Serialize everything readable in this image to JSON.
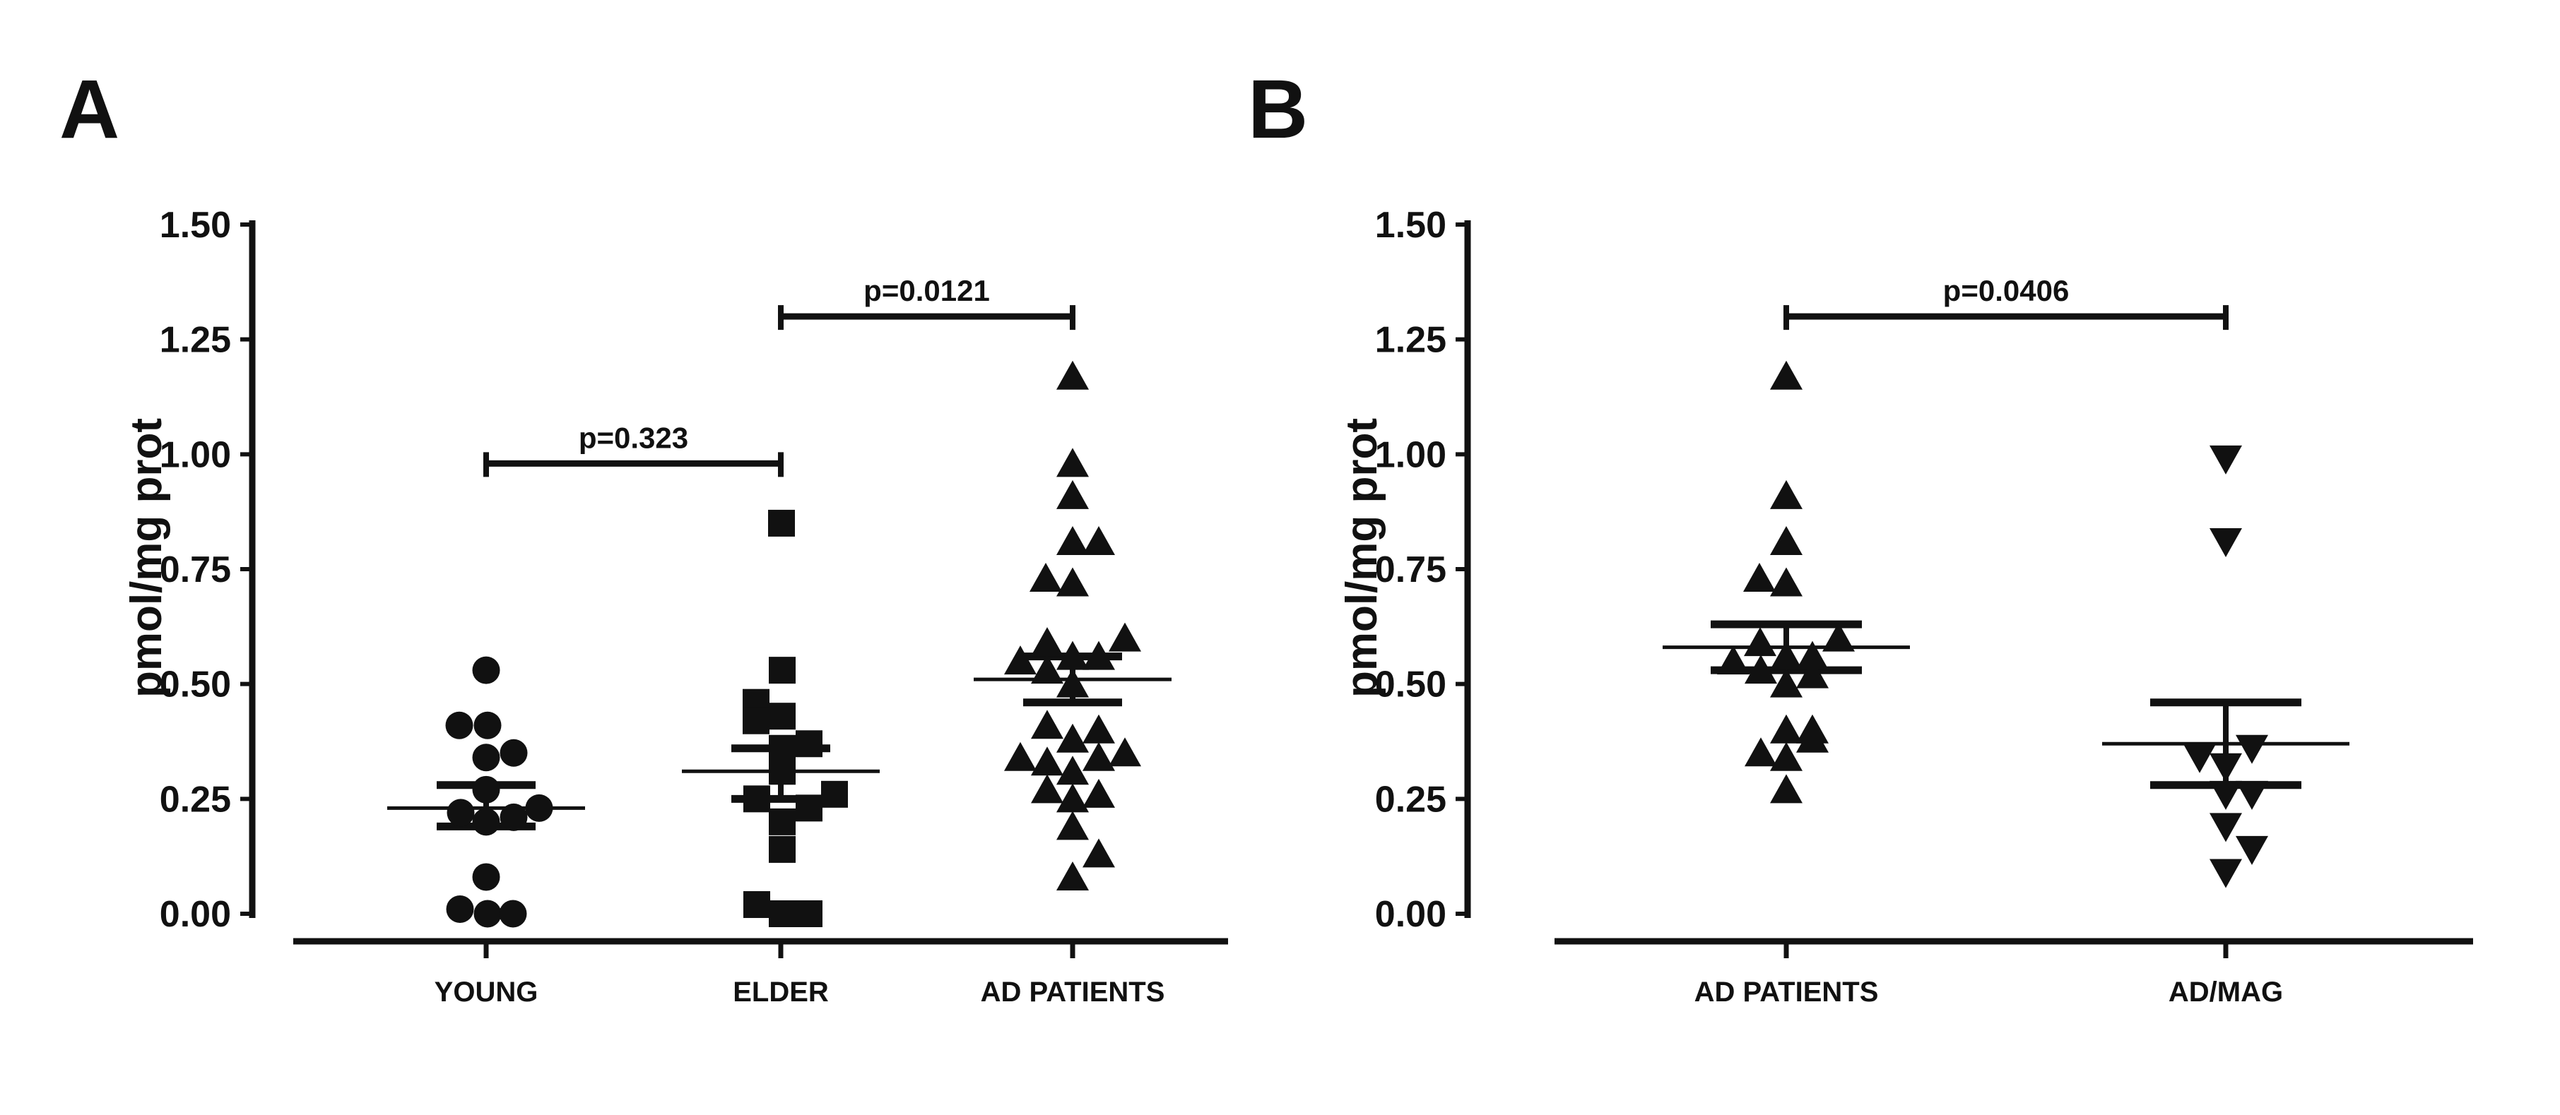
{
  "figure": {
    "background": "#ffffff",
    "ink_color": "#111111",
    "panel_a_letter": "A",
    "panel_b_letter": "B"
  },
  "chart_data": [
    {
      "type": "scatter",
      "panel_label": "A",
      "title": "",
      "xlabel": "",
      "ylabel": "pmol/mg prot",
      "ylim": [
        0.0,
        1.5
      ],
      "ytick_values": [
        0.0,
        0.25,
        0.5,
        0.75,
        1.0,
        1.25,
        1.5
      ],
      "ytick_labels": [
        "0.00",
        "0.25",
        "0.50",
        "0.75",
        "1.00",
        "1.25",
        "1.50"
      ],
      "grid": false,
      "legend": "none",
      "categories": [
        "YOUNG",
        "ELDER",
        "AD PATIENTS"
      ],
      "groups": [
        {
          "name": "YOUNG",
          "marker": "circle",
          "mean": 0.23,
          "sem_low": 0.19,
          "sem_high": 0.28,
          "points": [
            {
              "v": 0.53,
              "dx": 0
            },
            {
              "v": 0.41,
              "dx": -38
            },
            {
              "v": 0.41,
              "dx": 2
            },
            {
              "v": 0.35,
              "dx": 39
            },
            {
              "v": 0.34,
              "dx": 0
            },
            {
              "v": 0.27,
              "dx": 0
            },
            {
              "v": 0.23,
              "dx": 75
            },
            {
              "v": 0.22,
              "dx": -36
            },
            {
              "v": 0.21,
              "dx": 39
            },
            {
              "v": 0.2,
              "dx": 0
            },
            {
              "v": 0.08,
              "dx": 0
            },
            {
              "v": 0.01,
              "dx": -37
            },
            {
              "v": 0.0,
              "dx": 2
            },
            {
              "v": 0.0,
              "dx": 38
            }
          ]
        },
        {
          "name": "ELDER",
          "marker": "square",
          "mean": 0.31,
          "sem_low": 0.25,
          "sem_high": 0.36,
          "points": [
            {
              "v": 0.85,
              "dx": 1
            },
            {
              "v": 0.53,
              "dx": 2
            },
            {
              "v": 0.46,
              "dx": -35
            },
            {
              "v": 0.43,
              "dx": 2
            },
            {
              "v": 0.42,
              "dx": -35
            },
            {
              "v": 0.37,
              "dx": 40
            },
            {
              "v": 0.36,
              "dx": 2
            },
            {
              "v": 0.31,
              "dx": 2
            },
            {
              "v": 0.26,
              "dx": 76
            },
            {
              "v": 0.25,
              "dx": -34
            },
            {
              "v": 0.23,
              "dx": 40
            },
            {
              "v": 0.2,
              "dx": 2
            },
            {
              "v": 0.14,
              "dx": 2
            },
            {
              "v": 0.02,
              "dx": -34
            },
            {
              "v": 0.0,
              "dx": 2
            },
            {
              "v": 0.0,
              "dx": 40
            }
          ]
        },
        {
          "name": "AD PATIENTS",
          "marker": "triangle-up",
          "mean": 0.51,
          "sem_low": 0.46,
          "sem_high": 0.56,
          "points": [
            {
              "v": 1.17,
              "dx": 0
            },
            {
              "v": 0.98,
              "dx": 0
            },
            {
              "v": 0.91,
              "dx": 0
            },
            {
              "v": 0.81,
              "dx": 0
            },
            {
              "v": 0.81,
              "dx": 37
            },
            {
              "v": 0.73,
              "dx": -38
            },
            {
              "v": 0.72,
              "dx": 0
            },
            {
              "v": 0.6,
              "dx": 74
            },
            {
              "v": 0.59,
              "dx": -36
            },
            {
              "v": 0.56,
              "dx": 0
            },
            {
              "v": 0.56,
              "dx": 37
            },
            {
              "v": 0.55,
              "dx": -74
            },
            {
              "v": 0.53,
              "dx": -36
            },
            {
              "v": 0.5,
              "dx": 0
            },
            {
              "v": 0.41,
              "dx": -36
            },
            {
              "v": 0.4,
              "dx": 37
            },
            {
              "v": 0.38,
              "dx": 0
            },
            {
              "v": 0.35,
              "dx": 74
            },
            {
              "v": 0.34,
              "dx": -74
            },
            {
              "v": 0.34,
              "dx": 37
            },
            {
              "v": 0.33,
              "dx": -36
            },
            {
              "v": 0.31,
              "dx": 0
            },
            {
              "v": 0.27,
              "dx": -36
            },
            {
              "v": 0.26,
              "dx": 37
            },
            {
              "v": 0.25,
              "dx": 0
            },
            {
              "v": 0.19,
              "dx": 0
            },
            {
              "v": 0.13,
              "dx": 37
            },
            {
              "v": 0.08,
              "dx": 0
            }
          ]
        }
      ],
      "comparisons": [
        {
          "label": "p=0.323",
          "from": 0,
          "to": 1,
          "y": 0.98
        },
        {
          "label": "p=0.0121",
          "from": 1,
          "to": 2,
          "y": 1.3
        }
      ]
    },
    {
      "type": "scatter",
      "panel_label": "B",
      "title": "",
      "xlabel": "",
      "ylabel": "pmol/mg prot",
      "ylim": [
        0.0,
        1.5
      ],
      "ytick_values": [
        0.0,
        0.25,
        0.5,
        0.75,
        1.0,
        1.25,
        1.5
      ],
      "ytick_labels": [
        "0.00",
        "0.25",
        "0.50",
        "0.75",
        "1.00",
        "1.25",
        "1.50"
      ],
      "grid": false,
      "legend": "none",
      "categories": [
        "AD PATIENTS",
        "AD/MAG"
      ],
      "groups": [
        {
          "name": "AD PATIENTS",
          "marker": "triangle-up",
          "mean": 0.58,
          "sem_low": 0.53,
          "sem_high": 0.63,
          "points": [
            {
              "v": 1.17,
              "dx": 0
            },
            {
              "v": 0.91,
              "dx": 0
            },
            {
              "v": 0.81,
              "dx": 0
            },
            {
              "v": 0.73,
              "dx": -38
            },
            {
              "v": 0.72,
              "dx": 0
            },
            {
              "v": 0.6,
              "dx": 74
            },
            {
              "v": 0.59,
              "dx": -37
            },
            {
              "v": 0.56,
              "dx": 0
            },
            {
              "v": 0.56,
              "dx": 37
            },
            {
              "v": 0.55,
              "dx": -75
            },
            {
              "v": 0.53,
              "dx": -36
            },
            {
              "v": 0.52,
              "dx": 37
            },
            {
              "v": 0.5,
              "dx": 0
            },
            {
              "v": 0.4,
              "dx": 0
            },
            {
              "v": 0.4,
              "dx": 37
            },
            {
              "v": 0.38,
              "dx": 37
            },
            {
              "v": 0.35,
              "dx": -36
            },
            {
              "v": 0.34,
              "dx": 0
            },
            {
              "v": 0.27,
              "dx": 0
            }
          ]
        },
        {
          "name": "AD/MAG",
          "marker": "triangle-down",
          "mean": 0.37,
          "sem_low": 0.28,
          "sem_high": 0.46,
          "points": [
            {
              "v": 0.99,
              "dx": 0
            },
            {
              "v": 0.81,
              "dx": 0
            },
            {
              "v": 0.36,
              "dx": 37
            },
            {
              "v": 0.34,
              "dx": -37
            },
            {
              "v": 0.32,
              "dx": 0
            },
            {
              "v": 0.26,
              "dx": 0
            },
            {
              "v": 0.26,
              "dx": 37
            },
            {
              "v": 0.19,
              "dx": 0
            },
            {
              "v": 0.14,
              "dx": 37
            },
            {
              "v": 0.09,
              "dx": 0
            }
          ]
        }
      ],
      "comparisons": [
        {
          "label": "p=0.0406",
          "from": 0,
          "to": 1,
          "y": 1.3
        }
      ]
    }
  ]
}
